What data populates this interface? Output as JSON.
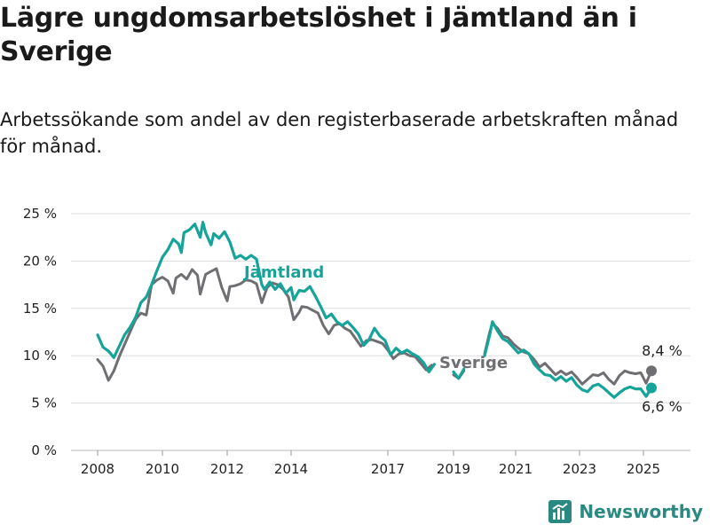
{
  "title": "Lägre ungdomsarbetslöshet i Jämtland än i Sverige",
  "subtitle": "Arbetssökande som andel av den registerbaserade arbetskraften månad för månad.",
  "brand": "Newsworthy",
  "colors": {
    "jamtland": "#16a39a",
    "sverige": "#6e6e73",
    "grid": "#dddddd",
    "brand": "#2a8a82"
  },
  "chart_data": {
    "type": "line",
    "x_ticks": [
      "2008",
      "2010",
      "2012",
      "2014",
      "2017",
      "2019",
      "2021",
      "2023",
      "2025"
    ],
    "y_ticks": [
      "0 %",
      "5 %",
      "10 %",
      "15 %",
      "20 %",
      "25 %"
    ],
    "ylim": [
      0,
      25
    ],
    "grid": "horizontal",
    "series": [
      {
        "name": "Jämtland",
        "end_label": "6,6 %",
        "points": [
          [
            "2008-01",
            12.2
          ],
          [
            "2008-03",
            10.9
          ],
          [
            "2008-05",
            10.5
          ],
          [
            "2008-07",
            9.8
          ],
          [
            "2008-09",
            11.0
          ],
          [
            "2008-11",
            12.2
          ],
          [
            "2009-01",
            13.0
          ],
          [
            "2009-03",
            14.0
          ],
          [
            "2009-05",
            15.6
          ],
          [
            "2009-07",
            16.2
          ],
          [
            "2009-09",
            17.5
          ],
          [
            "2009-11",
            19.0
          ],
          [
            "2010-01",
            20.4
          ],
          [
            "2010-03",
            21.2
          ],
          [
            "2010-05",
            22.3
          ],
          [
            "2010-07",
            21.8
          ],
          [
            "2010-08",
            20.9
          ],
          [
            "2010-09",
            23.0
          ],
          [
            "2010-11",
            23.3
          ],
          [
            "2011-01",
            23.9
          ],
          [
            "2011-03",
            22.5
          ],
          [
            "2011-04",
            24.1
          ],
          [
            "2011-05",
            23.0
          ],
          [
            "2011-07",
            21.7
          ],
          [
            "2011-08",
            22.9
          ],
          [
            "2011-10",
            22.4
          ],
          [
            "2011-12",
            23.1
          ],
          [
            "2012-02",
            22.0
          ],
          [
            "2012-04",
            20.3
          ],
          [
            "2012-06",
            20.6
          ],
          [
            "2012-08",
            20.2
          ],
          [
            "2012-10",
            20.6
          ],
          [
            "2012-12",
            20.2
          ],
          [
            "2013-02",
            17.5
          ],
          [
            "2013-03",
            17.0
          ],
          [
            "2013-05",
            17.8
          ],
          [
            "2013-07",
            17.0
          ],
          [
            "2013-09",
            17.6
          ],
          [
            "2013-11",
            16.6
          ],
          [
            "2014-01",
            17.2
          ],
          [
            "2014-02",
            15.9
          ],
          [
            "2014-04",
            16.9
          ],
          [
            "2014-06",
            16.8
          ],
          [
            "2014-08",
            17.3
          ],
          [
            "2014-10",
            16.3
          ],
          [
            "2014-12",
            15.2
          ],
          [
            "2015-02",
            14.0
          ],
          [
            "2015-04",
            14.4
          ],
          [
            "2015-06",
            13.6
          ],
          [
            "2015-08",
            13.2
          ],
          [
            "2015-10",
            13.6
          ],
          [
            "2015-12",
            13.0
          ],
          [
            "2016-02",
            12.3
          ],
          [
            "2016-04",
            11.1
          ],
          [
            "2016-06",
            11.7
          ],
          [
            "2016-08",
            12.9
          ],
          [
            "2016-10",
            12.1
          ],
          [
            "2016-12",
            11.6
          ],
          [
            "2017-02",
            10.1
          ],
          [
            "2017-04",
            10.8
          ],
          [
            "2017-06",
            10.3
          ],
          [
            "2017-08",
            10.6
          ],
          [
            "2017-10",
            10.2
          ],
          [
            "2017-12",
            9.9
          ],
          [
            "2018-02",
            9.3
          ],
          [
            "2018-04",
            8.3
          ],
          [
            "2018-06",
            9.1
          ],
          null,
          [
            "2019-01",
            8.3
          ],
          [
            "2019-03",
            7.6
          ],
          [
            "2019-05",
            8.6
          ],
          null,
          [
            "2020-01",
            10.0
          ],
          [
            "2020-03",
            12.2
          ],
          [
            "2020-04",
            13.6
          ],
          [
            "2020-06",
            12.6
          ],
          [
            "2020-08",
            11.8
          ],
          [
            "2020-10",
            11.5
          ],
          [
            "2020-12",
            10.9
          ],
          [
            "2021-02",
            10.3
          ],
          [
            "2021-04",
            10.6
          ],
          [
            "2021-06",
            10.2
          ],
          [
            "2021-08",
            9.1
          ],
          [
            "2021-10",
            8.5
          ],
          [
            "2021-12",
            8.0
          ],
          [
            "2022-02",
            7.9
          ],
          [
            "2022-04",
            7.4
          ],
          [
            "2022-06",
            7.8
          ],
          [
            "2022-08",
            7.3
          ],
          [
            "2022-10",
            7.7
          ],
          [
            "2022-12",
            6.9
          ],
          [
            "2023-02",
            6.4
          ],
          [
            "2023-04",
            6.2
          ],
          [
            "2023-06",
            6.8
          ],
          [
            "2023-08",
            7.0
          ],
          [
            "2023-10",
            6.6
          ],
          [
            "2023-12",
            6.1
          ],
          [
            "2024-02",
            5.6
          ],
          [
            "2024-04",
            6.1
          ],
          [
            "2024-06",
            6.5
          ],
          [
            "2024-08",
            6.7
          ],
          [
            "2024-10",
            6.5
          ],
          [
            "2024-12",
            6.5
          ],
          [
            "2025-02",
            5.7
          ],
          [
            "2025-04",
            6.6
          ]
        ]
      },
      {
        "name": "Sverige",
        "end_label": "8,4 %",
        "points": [
          [
            "2008-01",
            9.6
          ],
          [
            "2008-03",
            8.9
          ],
          [
            "2008-05",
            7.4
          ],
          [
            "2008-07",
            8.4
          ],
          [
            "2008-09",
            9.9
          ],
          [
            "2008-11",
            11.2
          ],
          [
            "2009-01",
            12.5
          ],
          [
            "2009-03",
            13.8
          ],
          [
            "2009-05",
            14.5
          ],
          [
            "2009-07",
            14.3
          ],
          [
            "2009-09",
            17.5
          ],
          [
            "2009-11",
            18.0
          ],
          [
            "2010-01",
            18.3
          ],
          [
            "2010-03",
            17.9
          ],
          [
            "2010-05",
            16.6
          ],
          [
            "2010-06",
            18.2
          ],
          [
            "2010-08",
            18.6
          ],
          [
            "2010-10",
            18.1
          ],
          [
            "2010-12",
            19.1
          ],
          [
            "2011-02",
            18.5
          ],
          [
            "2011-03",
            16.5
          ],
          [
            "2011-05",
            18.6
          ],
          [
            "2011-07",
            18.9
          ],
          [
            "2011-09",
            19.2
          ],
          [
            "2011-11",
            17.2
          ],
          [
            "2012-01",
            15.8
          ],
          [
            "2012-02",
            17.3
          ],
          [
            "2012-04",
            17.4
          ],
          [
            "2012-06",
            17.6
          ],
          [
            "2012-08",
            18.0
          ],
          [
            "2012-10",
            17.9
          ],
          [
            "2012-12",
            17.6
          ],
          [
            "2013-02",
            15.6
          ],
          [
            "2013-04",
            17.2
          ],
          [
            "2013-06",
            17.7
          ],
          [
            "2013-08",
            17.5
          ],
          [
            "2013-10",
            17.0
          ],
          [
            "2013-12",
            16.2
          ],
          [
            "2014-02",
            13.8
          ],
          [
            "2014-04",
            14.6
          ],
          [
            "2014-05",
            15.2
          ],
          [
            "2014-07",
            15.1
          ],
          [
            "2014-09",
            14.8
          ],
          [
            "2014-11",
            14.5
          ],
          [
            "2015-01",
            13.2
          ],
          [
            "2015-03",
            12.3
          ],
          [
            "2015-05",
            13.2
          ],
          [
            "2015-07",
            13.4
          ],
          [
            "2015-09",
            12.9
          ],
          [
            "2015-11",
            12.6
          ],
          [
            "2016-01",
            11.8
          ],
          [
            "2016-03",
            11.0
          ],
          [
            "2016-05",
            11.6
          ],
          [
            "2016-07",
            11.7
          ],
          [
            "2016-09",
            11.5
          ],
          [
            "2016-11",
            11.3
          ],
          [
            "2017-01",
            10.6
          ],
          [
            "2017-03",
            9.7
          ],
          [
            "2017-05",
            10.2
          ],
          [
            "2017-07",
            10.3
          ],
          [
            "2017-09",
            10.0
          ],
          [
            "2017-11",
            9.9
          ],
          [
            "2018-01",
            9.2
          ],
          [
            "2018-03",
            8.5
          ],
          [
            "2018-05",
            9.0
          ],
          null,
          [
            "2019-01",
            8.0
          ],
          [
            "2019-03",
            7.6
          ],
          [
            "2019-05",
            8.4
          ],
          null,
          [
            "2020-01",
            10.2
          ],
          [
            "2020-03",
            12.5
          ],
          [
            "2020-04",
            13.4
          ],
          [
            "2020-06",
            12.9
          ],
          [
            "2020-08",
            12.1
          ],
          [
            "2020-10",
            11.9
          ],
          [
            "2020-12",
            11.3
          ],
          [
            "2021-02",
            10.8
          ],
          [
            "2021-04",
            10.4
          ],
          [
            "2021-06",
            10.2
          ],
          [
            "2021-08",
            9.6
          ],
          [
            "2021-10",
            8.8
          ],
          [
            "2021-12",
            9.2
          ],
          [
            "2022-02",
            8.6
          ],
          [
            "2022-04",
            8.0
          ],
          [
            "2022-06",
            8.4
          ],
          [
            "2022-08",
            8.0
          ],
          [
            "2022-10",
            8.3
          ],
          [
            "2022-12",
            7.7
          ],
          [
            "2023-02",
            7.0
          ],
          [
            "2023-04",
            7.5
          ],
          [
            "2023-06",
            8.0
          ],
          [
            "2023-08",
            7.9
          ],
          [
            "2023-10",
            8.2
          ],
          [
            "2023-12",
            7.5
          ],
          [
            "2024-02",
            7.0
          ],
          [
            "2024-04",
            7.9
          ],
          [
            "2024-06",
            8.4
          ],
          [
            "2024-08",
            8.2
          ],
          [
            "2024-10",
            8.1
          ],
          [
            "2024-12",
            8.2
          ],
          [
            "2025-02",
            7.1
          ],
          [
            "2025-04",
            8.4
          ]
        ]
      }
    ]
  }
}
